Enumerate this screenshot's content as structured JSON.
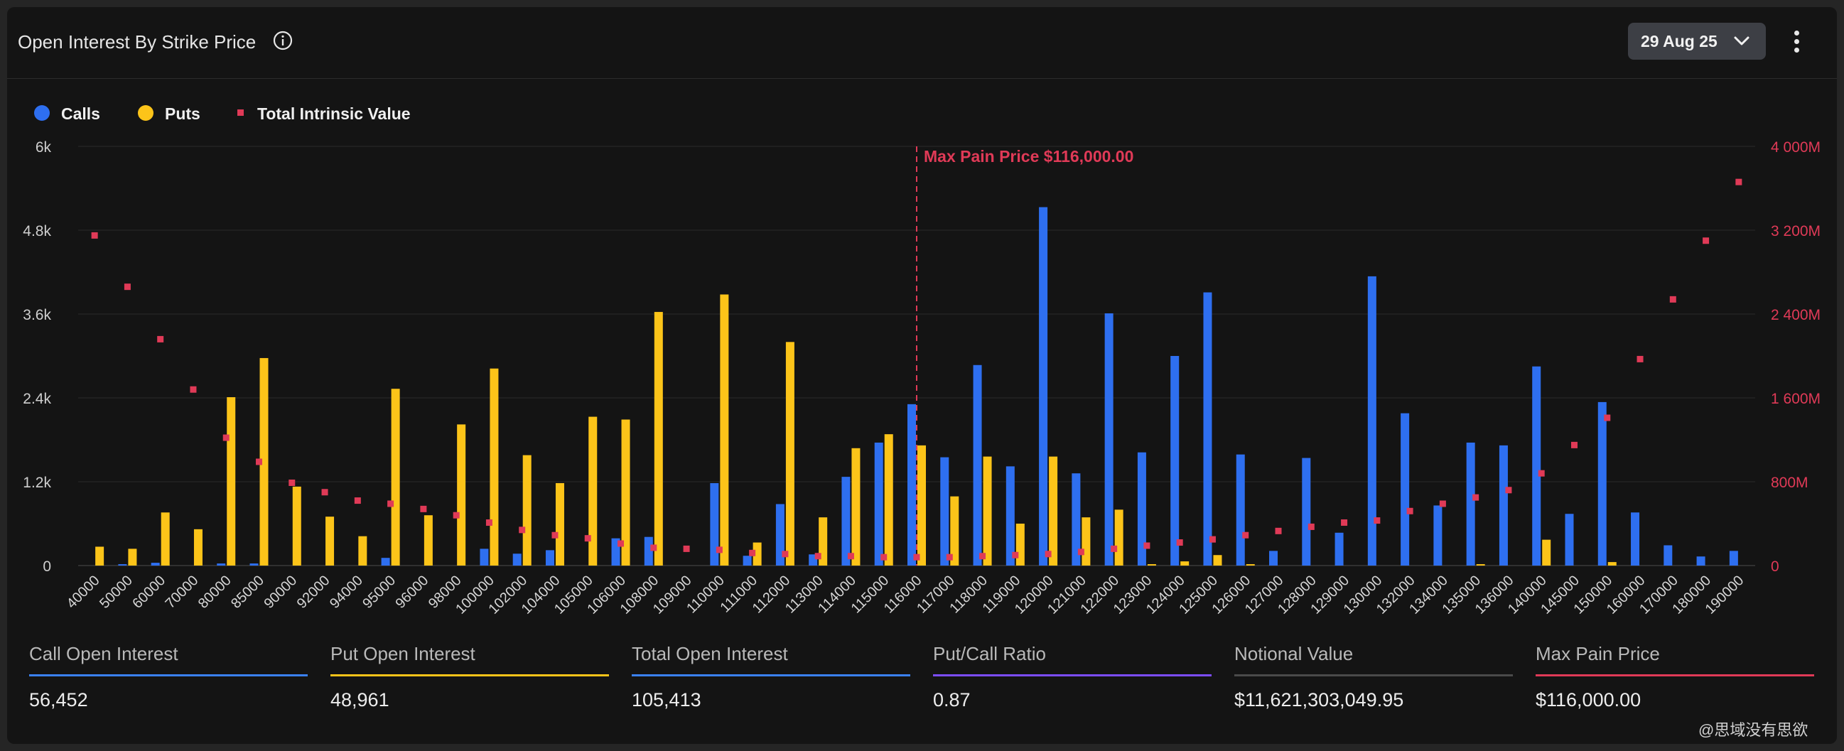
{
  "header": {
    "title": "Open Interest By Strike Price",
    "date_label": "29 Aug 25"
  },
  "legend": [
    {
      "label": "Calls",
      "color": "#2e6ff0",
      "shape": "circle"
    },
    {
      "label": "Puts",
      "color": "#fcc419",
      "shape": "circle"
    },
    {
      "label": "Total Intrinsic Value",
      "color": "#e03a57",
      "shape": "square"
    }
  ],
  "chart_data": {
    "type": "bar",
    "categories": [
      "40000",
      "50000",
      "60000",
      "70000",
      "80000",
      "85000",
      "90000",
      "92000",
      "94000",
      "95000",
      "96000",
      "98000",
      "100000",
      "102000",
      "104000",
      "105000",
      "106000",
      "108000",
      "109000",
      "110000",
      "111000",
      "112000",
      "113000",
      "114000",
      "115000",
      "116000",
      "117000",
      "118000",
      "119000",
      "120000",
      "121000",
      "122000",
      "123000",
      "124000",
      "125000",
      "126000",
      "127000",
      "128000",
      "129000",
      "130000",
      "132000",
      "134000",
      "135000",
      "136000",
      "140000",
      "145000",
      "150000",
      "160000",
      "170000",
      "180000",
      "190000"
    ],
    "series": [
      {
        "name": "Calls",
        "axis": "left",
        "color": "#2e6ff0",
        "values": [
          0,
          20,
          40,
          0,
          30,
          30,
          0,
          0,
          0,
          110,
          0,
          0,
          240,
          170,
          220,
          0,
          390,
          410,
          0,
          1180,
          140,
          880,
          160,
          1270,
          1760,
          2310,
          1550,
          2870,
          1420,
          5130,
          1320,
          3610,
          1620,
          3000,
          3910,
          1590,
          210,
          1540,
          470,
          4140,
          2180,
          860,
          1760,
          1720,
          2850,
          740,
          2340,
          760,
          290,
          130,
          210
        ]
      },
      {
        "name": "Puts",
        "axis": "left",
        "color": "#fcc419",
        "values": [
          270,
          240,
          760,
          520,
          2410,
          2970,
          1130,
          700,
          420,
          2530,
          720,
          2020,
          2820,
          1580,
          1180,
          2130,
          2090,
          3630,
          0,
          3880,
          330,
          3200,
          690,
          1680,
          1880,
          1720,
          990,
          1560,
          600,
          1560,
          690,
          800,
          20,
          60,
          150,
          20,
          0,
          0,
          0,
          0,
          0,
          0,
          20,
          0,
          370,
          0,
          50,
          0,
          0,
          0,
          0
        ]
      },
      {
        "name": "Total Intrinsic Value",
        "axis": "right",
        "type": "scatter",
        "color": "#e03a57",
        "values": [
          3150,
          2660,
          2160,
          1680,
          1220,
          990,
          790,
          700,
          620,
          590,
          540,
          480,
          410,
          340,
          290,
          260,
          210,
          170,
          160,
          150,
          120,
          110,
          90,
          90,
          80,
          80,
          80,
          90,
          100,
          110,
          130,
          160,
          190,
          220,
          250,
          290,
          330,
          370,
          410,
          430,
          520,
          590,
          650,
          720,
          880,
          1150,
          1410,
          1970,
          2540,
          3100,
          3660
        ]
      }
    ],
    "yleft_ticks": [
      "0",
      "1.2k",
      "2.4k",
      "3.6k",
      "4.8k",
      "6k"
    ],
    "yleft_range": [
      0,
      6000
    ],
    "yright_ticks": [
      "0",
      "800M",
      "1 600M",
      "2 400M",
      "3 200M",
      "4 000M"
    ],
    "yright_range": [
      0,
      4000
    ],
    "annotation": {
      "label": "Max Pain Price $116,000.00",
      "category": "116000",
      "color": "#e03a57"
    },
    "grid": true,
    "legend_position": "top-left"
  },
  "stats": [
    {
      "label": "Call Open Interest",
      "value": "56,452",
      "color": "#3b82f6"
    },
    {
      "label": "Put Open Interest",
      "value": "48,961",
      "color": "#fcc419"
    },
    {
      "label": "Total Open Interest",
      "value": "105,413",
      "color": "#3b82f6"
    },
    {
      "label": "Put/Call Ratio",
      "value": "0.87",
      "color": "#7c4dff"
    },
    {
      "label": "Notional Value",
      "value": "$11,621,303,049.95",
      "color": "#4a4a4a"
    },
    {
      "label": "Max Pain Price",
      "value": "$116,000.00",
      "color": "#e03a57"
    }
  ],
  "watermark": "@思域没有思欲"
}
